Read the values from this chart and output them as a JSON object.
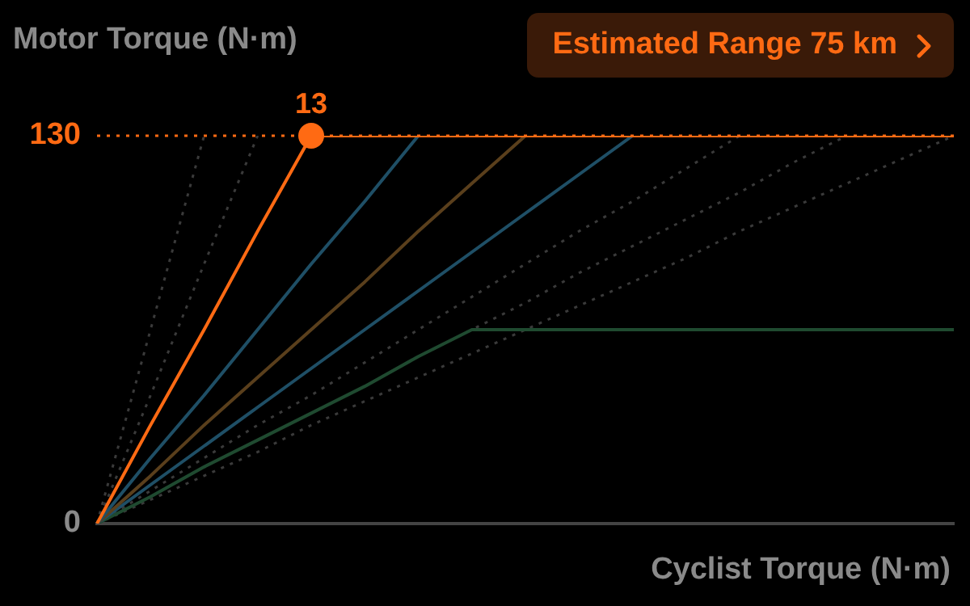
{
  "chart_data": {
    "type": "line",
    "ylabel": "Motor Torque (N·m)",
    "xlabel": "Cyclist Torque (N·m)",
    "annotations": [
      "Estimated Range 75 km",
      {
        "text": "13",
        "y": 130
      }
    ],
    "categories": [
      null,
      null,
      null,
      null,
      null,
      null,
      null,
      null,
      null,
      null,
      null,
      null,
      null,
      null,
      null,
      null,
      null
    ],
    "ylim": [
      0,
      130
    ],
    "yticks": [
      0,
      130
    ],
    "tick_labels": "y",
    "legend": false,
    "ref_lines": [
      {
        "axis": "y",
        "value": 130,
        "color": "#ff6a13",
        "line_style": "dotted"
      }
    ],
    "series": [
      {
        "color": "#3a3a3a",
        "line_style": "dotted",
        "values": [
          0,
          65,
          130,
          null,
          null,
          null,
          null,
          null,
          null,
          null,
          null,
          null,
          null,
          null,
          null,
          null,
          null
        ]
      },
      {
        "color": "#3a3a3a",
        "line_style": "dotted",
        "values": [
          0,
          43,
          87,
          130,
          null,
          null,
          null,
          null,
          null,
          null,
          null,
          null,
          null,
          null,
          null,
          null,
          null
        ]
      },
      {
        "color": "#3a3a3a",
        "line_style": "dotted",
        "values": [
          0,
          11,
          22,
          33,
          43,
          54,
          65,
          76,
          87,
          98,
          108,
          119,
          130,
          null,
          null,
          null,
          null
        ]
      },
      {
        "color": "#3a3a3a",
        "line_style": "dotted",
        "values": [
          0,
          9,
          19,
          28,
          37,
          46,
          56,
          65,
          74,
          84,
          93,
          102,
          111,
          121,
          130,
          null,
          null
        ]
      },
      {
        "color": "#3a3a3a",
        "line_style": "dotted",
        "values": [
          0,
          8,
          16,
          24,
          33,
          41,
          49,
          57,
          65,
          73,
          81,
          89,
          98,
          106,
          114,
          122,
          130
        ]
      },
      {
        "color": "#1f4a30",
        "line_style": "solid",
        "values": [
          0,
          9,
          19,
          28,
          37,
          46,
          56,
          65,
          65,
          65,
          65,
          65,
          65,
          65,
          65,
          65,
          65
        ]
      },
      {
        "color": "#1f4f66",
        "line_style": "solid",
        "values": [
          0,
          13,
          26,
          39,
          52,
          65,
          78,
          91,
          104,
          117,
          130,
          null,
          null,
          null,
          null,
          null,
          null
        ]
      },
      {
        "color": "#5a3f1c",
        "line_style": "solid",
        "values": [
          0,
          16,
          33,
          49,
          65,
          81,
          98,
          114,
          130,
          null,
          null,
          null,
          null,
          null,
          null,
          null,
          null
        ]
      },
      {
        "color": "#1f4f66",
        "line_style": "solid",
        "values": [
          0,
          22,
          43,
          65,
          87,
          108,
          130,
          null,
          null,
          null,
          null,
          null,
          null,
          null,
          null,
          null,
          null
        ]
      },
      {
        "color": "#ff6a13",
        "line_style": "solid",
        "values": [
          0,
          33,
          65,
          98,
          130,
          130,
          130,
          130,
          130,
          130,
          130,
          130,
          130,
          130,
          130,
          130,
          130
        ]
      }
    ]
  }
}
